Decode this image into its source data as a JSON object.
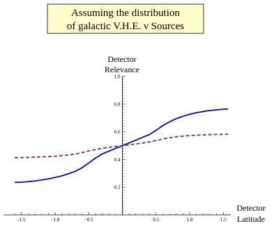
{
  "title_lines": [
    "Assuming the distribution",
    "of galactic V.H.E. ν Sources"
  ],
  "chart_data": {
    "type": "line",
    "xlabel": "Detector Latitude",
    "ylabel": "Detector Relevance",
    "xlabel_lines": [
      "Detector",
      "Latitude"
    ],
    "ylabel_lines": [
      "Detector",
      "Relevance"
    ],
    "xlim": [
      -1.6,
      1.6
    ],
    "ylim": [
      0,
      1.0
    ],
    "x_ticks": [
      -1.5,
      -1.0,
      -0.5,
      0.5,
      1.0,
      1.5
    ],
    "x_tick_labels": [
      "-1.5",
      "−1.0",
      "−0.5",
      "0.5",
      "1.0",
      "1.5"
    ],
    "y_ticks": [
      0.2,
      0.4,
      0.6,
      0.8,
      1.0
    ],
    "y_tick_labels": [
      "0.2",
      "0.4",
      "0.6",
      "0.8",
      "1.0"
    ],
    "series": [
      {
        "color": "#0000dd",
        "dash": "solid",
        "x": [
          -1.6,
          -1.5,
          -1.4,
          -1.3,
          -1.2,
          -1.1,
          -1.0,
          -0.9,
          -0.8,
          -0.7,
          -0.6,
          -0.5,
          -0.4,
          -0.3,
          -0.2,
          -0.1,
          0.0,
          0.1,
          0.2,
          0.3,
          0.4,
          0.5,
          0.6,
          0.7,
          0.8,
          0.9,
          1.0,
          1.1,
          1.2,
          1.3,
          1.4,
          1.5,
          1.57
        ],
        "y": [
          0.235,
          0.236,
          0.24,
          0.245,
          0.252,
          0.26,
          0.27,
          0.282,
          0.297,
          0.315,
          0.34,
          0.375,
          0.41,
          0.44,
          0.46,
          0.48,
          0.5,
          0.52,
          0.54,
          0.56,
          0.58,
          0.61,
          0.645,
          0.672,
          0.695,
          0.712,
          0.727,
          0.738,
          0.747,
          0.754,
          0.759,
          0.763,
          0.765
        ]
      },
      {
        "color": "#7a2a7a",
        "dash": "dashed",
        "x": [
          -1.6,
          -1.5,
          -1.4,
          -1.3,
          -1.2,
          -1.1,
          -1.0,
          -0.9,
          -0.8,
          -0.7,
          -0.6,
          -0.5,
          -0.4,
          -0.3,
          -0.2,
          -0.1,
          0.0,
          0.1,
          0.2,
          0.3,
          0.4,
          0.5,
          0.6,
          0.7,
          0.8,
          0.9,
          1.0,
          1.1,
          1.2,
          1.3,
          1.4,
          1.5,
          1.57
        ],
        "y": [
          0.413,
          0.414,
          0.415,
          0.417,
          0.419,
          0.421,
          0.424,
          0.428,
          0.433,
          0.44,
          0.45,
          0.462,
          0.472,
          0.481,
          0.488,
          0.494,
          0.5,
          0.506,
          0.512,
          0.519,
          0.527,
          0.537,
          0.548,
          0.557,
          0.564,
          0.569,
          0.573,
          0.576,
          0.578,
          0.58,
          0.581,
          0.582,
          0.583
        ]
      }
    ]
  }
}
